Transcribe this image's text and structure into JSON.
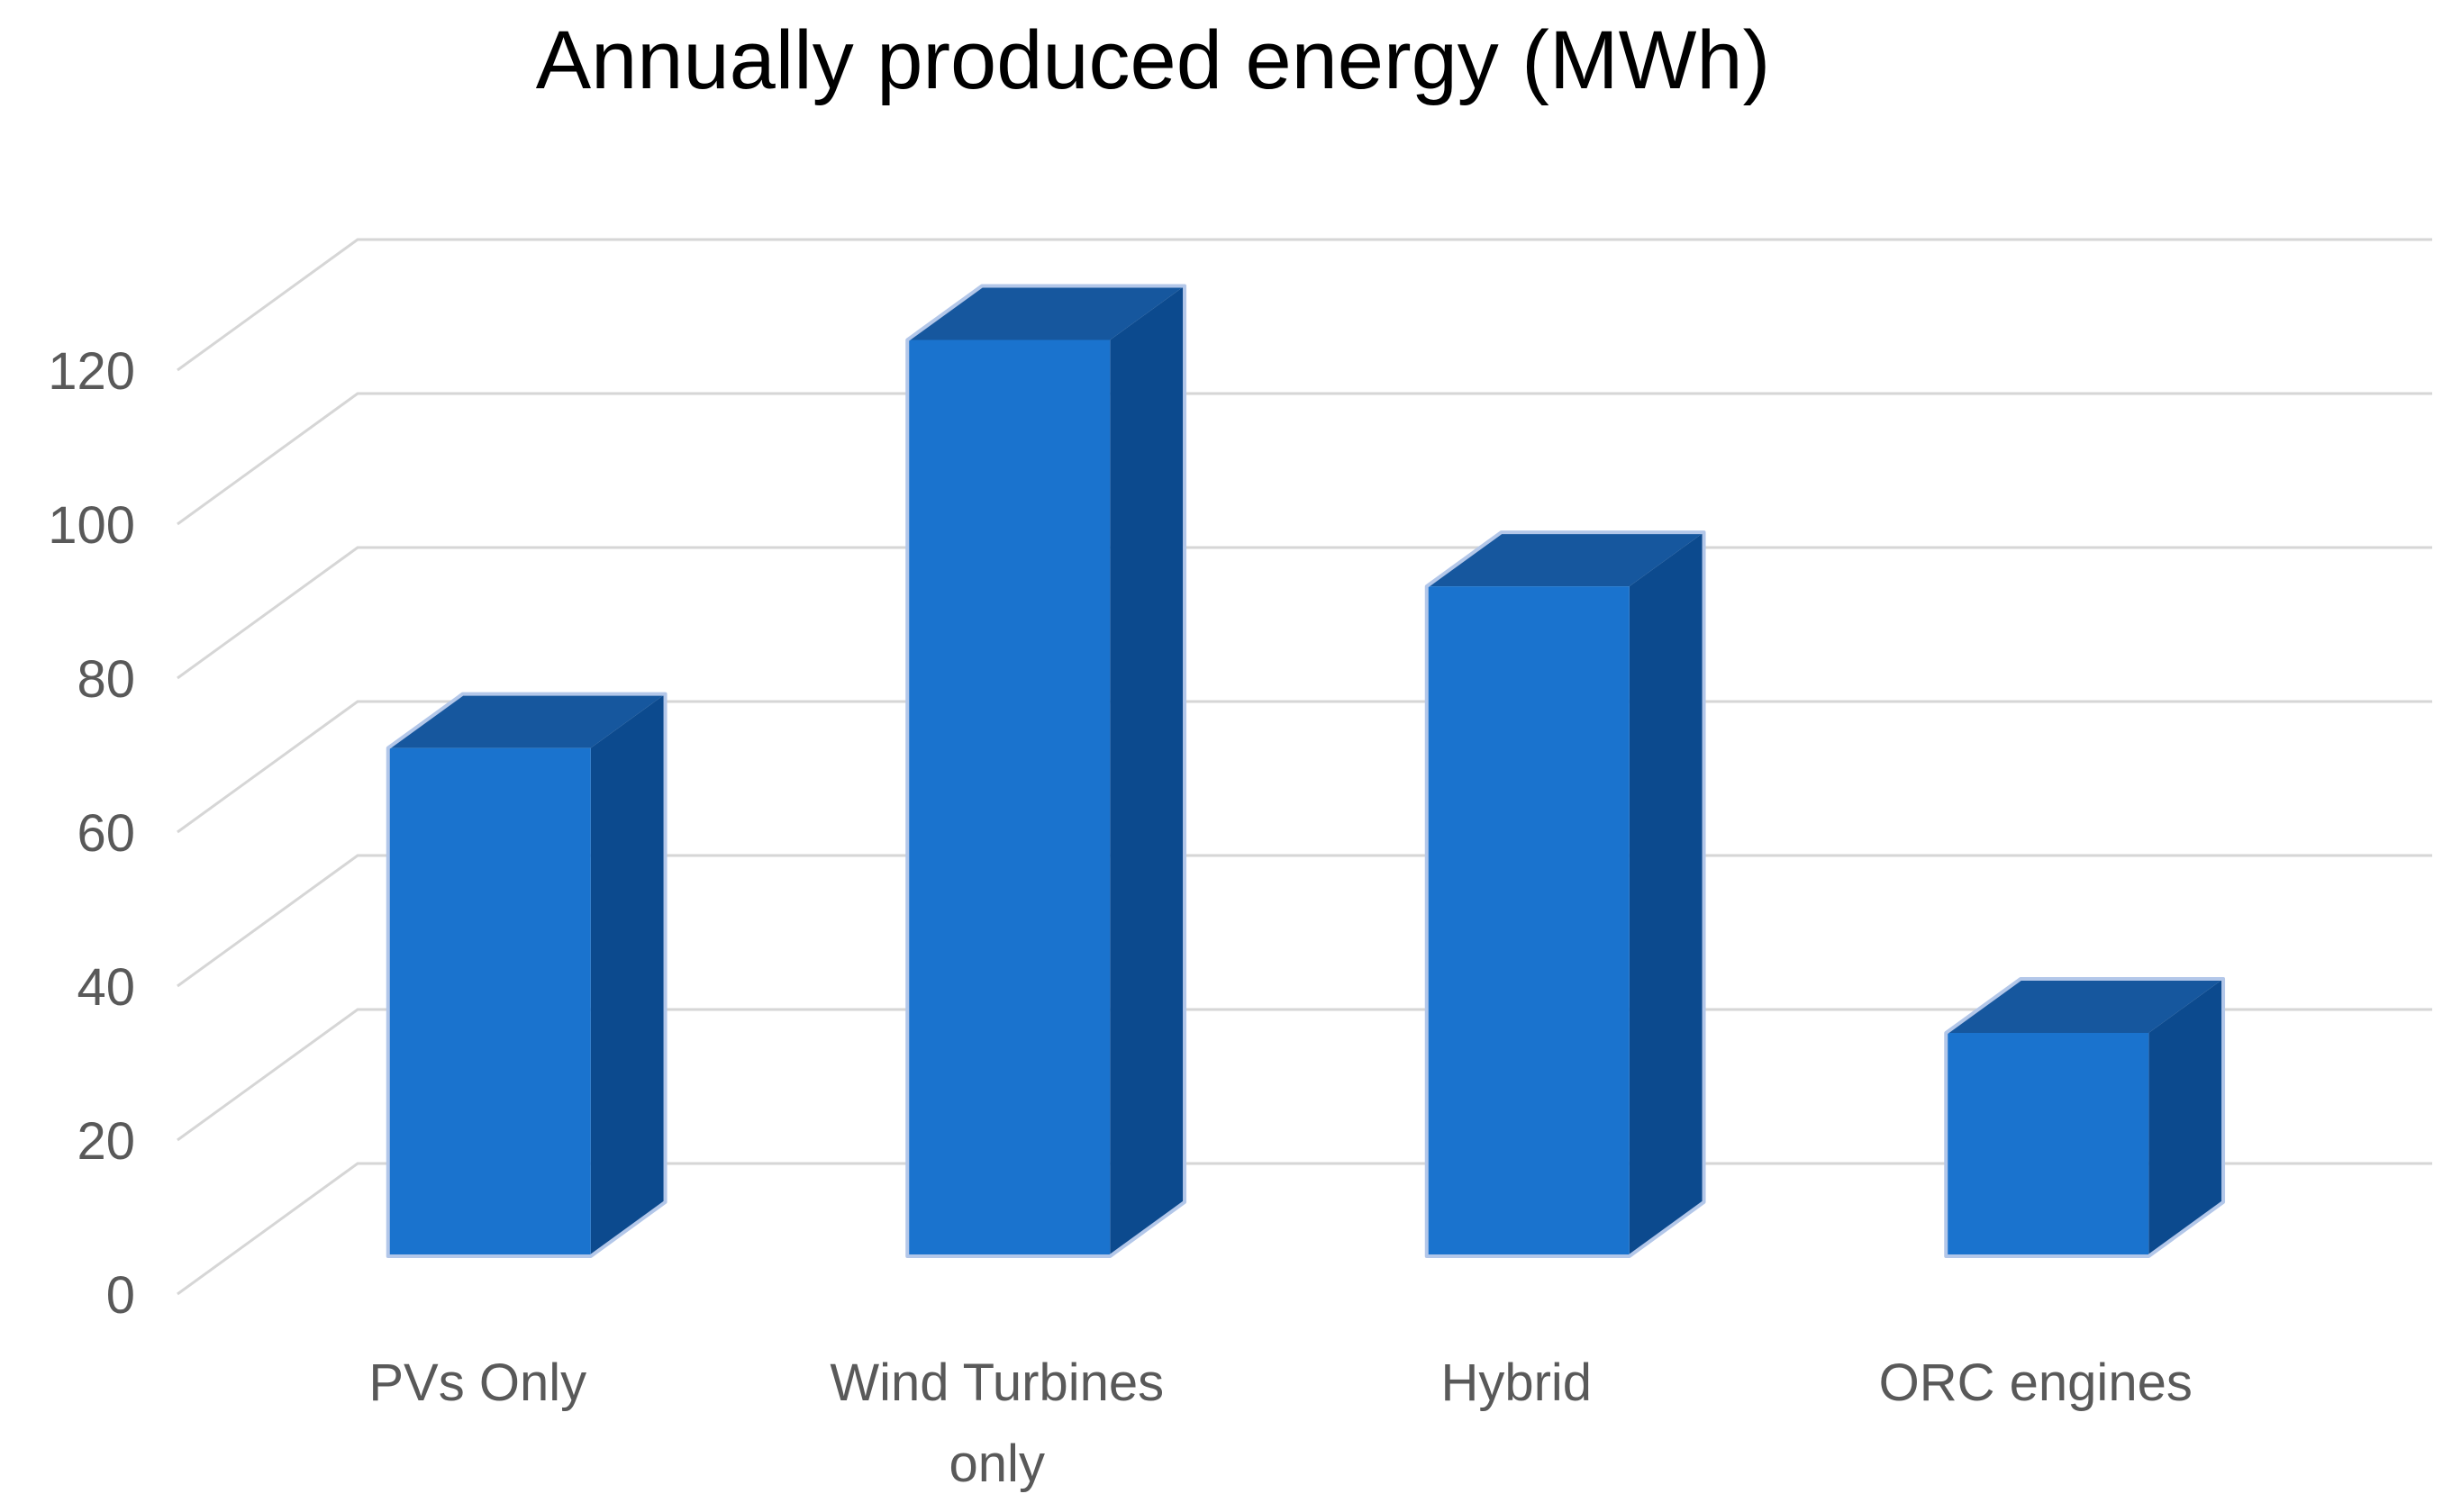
{
  "chart_data": {
    "type": "bar",
    "variant": "3d-column",
    "title": "Annually produced energy (MWh)",
    "categories": [
      "PVs Only",
      "Wind Turbines only",
      "Hybrid",
      "ORC engines"
    ],
    "category_label_lines": [
      [
        "PVs Only"
      ],
      [
        "Wind Turbines",
        "only"
      ],
      [
        "Hybrid"
      ],
      [
        "ORC engines"
      ]
    ],
    "series": [
      {
        "name": "Annually produced energy (MWh)",
        "values": [
          66,
          119,
          87,
          29
        ]
      }
    ],
    "xlabel": "",
    "ylabel": "",
    "ylim": [
      0,
      120
    ],
    "ytick_step": 20,
    "yticks": [
      "0",
      "20",
      "40",
      "60",
      "80",
      "100",
      "120"
    ],
    "grid": "on",
    "legend": "none",
    "colors": {
      "bar_front": "#1A73CE",
      "bar_side": "#0C4A8E",
      "bar_top": "#16579E",
      "bar_outline": "#B3C7E9",
      "gridline": "#D6D6D6",
      "text": "#595959",
      "background": "#FFFFFF"
    }
  }
}
